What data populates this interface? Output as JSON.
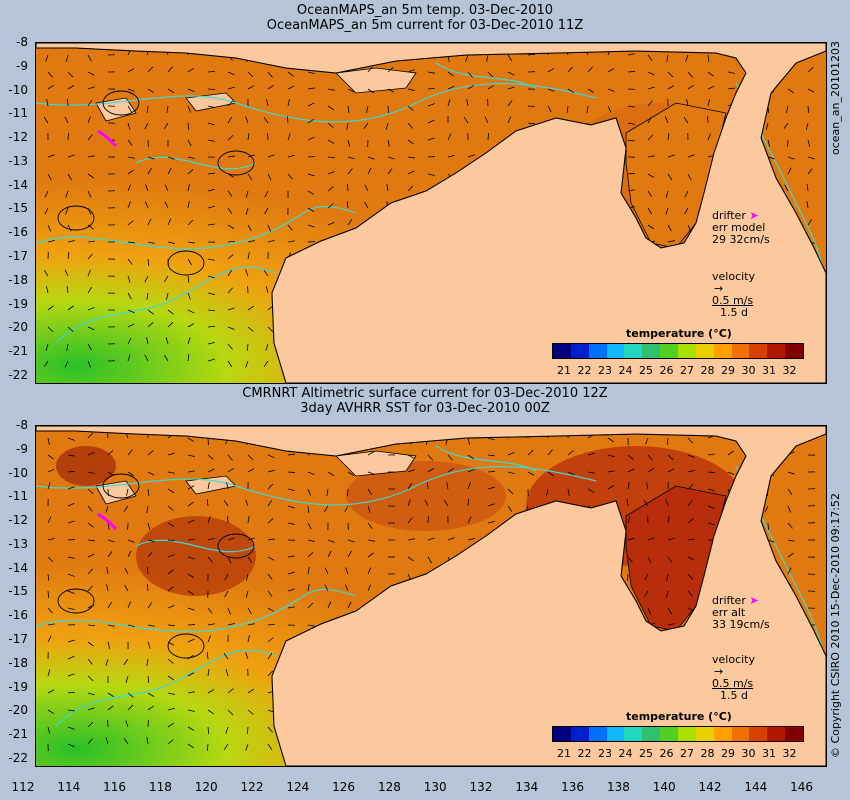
{
  "panels": [
    {
      "title1": "OceanMAPS_an 5m temp. 03-Dec-2010",
      "title2": "OceanMAPS_an 5m current for 03-Dec-2010 11Z",
      "side_label": "ocean_an_20101203",
      "drifter_label": "drifter",
      "err_label": "err model",
      "err_values": "29 32cm/s",
      "velocity_label": "velocity",
      "velocity_value": "0.5 m/s",
      "velocity_days": "1.5 d",
      "colorbar_title": "temperature (°C)"
    },
    {
      "title1": "CMRNRT Altimetric surface current for 03-Dec-2010 12Z",
      "title2": "3day AVHRR SST for 03-Dec-2010 00Z",
      "side_label": "© Copyright CSIRO 2010   15-Dec-2010 09:17:52",
      "drifter_label": "drifter",
      "err_label": "err alt",
      "err_values": "33 19cm/s",
      "velocity_label": "velocity",
      "velocity_value": "0.5 m/s",
      "velocity_days": "1.5 d",
      "colorbar_title": "temperature (°C)"
    }
  ],
  "y_ticks": [
    "-8",
    "-9",
    "-10",
    "-11",
    "-12",
    "-13",
    "-14",
    "-15",
    "-16",
    "-17",
    "-18",
    "-19",
    "-20",
    "-21",
    "-22"
  ],
  "x_ticks": [
    "112",
    "114",
    "116",
    "118",
    "120",
    "122",
    "124",
    "126",
    "128",
    "130",
    "132",
    "134",
    "136",
    "138",
    "140",
    "142",
    "144",
    "146"
  ],
  "colorbar_ticks": [
    "21",
    "22",
    "23",
    "24",
    "25",
    "26",
    "27",
    "28",
    "29",
    "30",
    "31",
    "32"
  ],
  "colors": {
    "background": "#b5c4d6",
    "land": "#fbc99d",
    "ocean_warm": "#e07a10",
    "ocean_hot": "#b82e0a",
    "contour": "#40d8d0",
    "drifter": "#ff00ff"
  }
}
